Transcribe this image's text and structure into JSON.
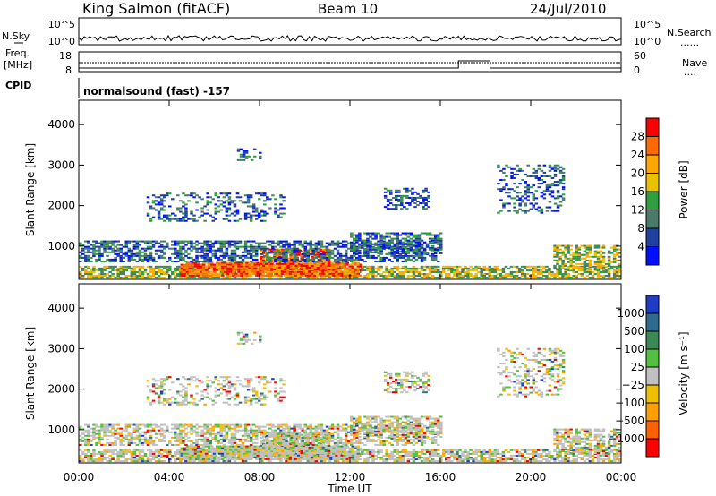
{
  "header": {
    "station": "King Salmon (fitACF)",
    "beam": "Beam 10",
    "date": "24/Jul/2010"
  },
  "top_panels": {
    "nsky_label": "N.Sky",
    "nsky_ticks": [
      "10^5",
      "10^0"
    ],
    "nsearch_label": "N.Search",
    "nsearch_ticks": [
      "10^5",
      "10^0"
    ],
    "freq_label_1": "Freq.",
    "freq_label_2": "[MHz]",
    "freq_ticks": [
      "18",
      "8"
    ],
    "nave_label": "Nave",
    "nave_ticks": [
      "60",
      "0"
    ],
    "cpid_label": "CPID",
    "cpid_value": "normalsound (fast) -157"
  },
  "chart_data": [
    {
      "type": "heatmap",
      "name": "power",
      "xlabel": "Time UT",
      "ylabel": "Slant Range [km]",
      "x_ticks": [
        "00:00",
        "04:00",
        "08:00",
        "12:00",
        "16:00",
        "20:00",
        "00:00"
      ],
      "y_ticks": [
        1000,
        2000,
        3000,
        4000
      ],
      "xlim_hours": [
        0,
        24
      ],
      "ylim_km": [
        180,
        4600
      ],
      "colorbar": {
        "label": "Power [dB]",
        "ticks": [
          "28",
          "24",
          "20",
          "16",
          "12",
          "8",
          "4"
        ],
        "colors": [
          "#ff0000",
          "#ff6a00",
          "#ffa500",
          "#e6c200",
          "#2e9e3e",
          "#4a7a6a",
          "#2040a0",
          "#0010ff"
        ]
      },
      "echo_regions": [
        {
          "t0": 0.0,
          "t1": 24.0,
          "r0": 200,
          "r1": 500,
          "level": "medium",
          "density": 0.7
        },
        {
          "t0": 4.5,
          "t1": 12.5,
          "r0": 250,
          "r1": 600,
          "level": "high",
          "density": 0.9
        },
        {
          "t0": 8.0,
          "t1": 11.0,
          "r0": 400,
          "r1": 900,
          "level": "high",
          "density": 0.85
        },
        {
          "t0": 0.0,
          "t1": 16.0,
          "r0": 600,
          "r1": 1100,
          "level": "low",
          "density": 0.6
        },
        {
          "t0": 12.0,
          "t1": 16.0,
          "r0": 800,
          "r1": 1300,
          "level": "low",
          "density": 0.6
        },
        {
          "t0": 3.0,
          "t1": 9.0,
          "r0": 1600,
          "r1": 2300,
          "level": "low",
          "density": 0.3
        },
        {
          "t0": 13.5,
          "t1": 15.5,
          "r0": 1900,
          "r1": 2400,
          "level": "low",
          "density": 0.4
        },
        {
          "t0": 7.0,
          "t1": 8.0,
          "r0": 3100,
          "r1": 3400,
          "level": "low",
          "density": 0.4
        },
        {
          "t0": 18.5,
          "t1": 21.5,
          "r0": 1800,
          "r1": 3000,
          "level": "low",
          "density": 0.3
        },
        {
          "t0": 21.0,
          "t1": 24.0,
          "r0": 400,
          "r1": 1000,
          "level": "medium",
          "density": 0.6
        }
      ]
    },
    {
      "type": "heatmap",
      "name": "velocity",
      "xlabel": "Time UT",
      "ylabel": "Slant Range [km]",
      "x_ticks": [
        "00:00",
        "04:00",
        "08:00",
        "12:00",
        "16:00",
        "20:00",
        "00:00"
      ],
      "y_ticks": [
        1000,
        2000,
        3000,
        4000
      ],
      "xlim_hours": [
        0,
        24
      ],
      "ylim_km": [
        180,
        4600
      ],
      "colorbar": {
        "label": "Velocity [m s⁻¹]",
        "ticks": [
          "1000",
          "500",
          "100",
          "25",
          "−25",
          "−100",
          "−500",
          "−1000"
        ],
        "colors": [
          "#1e3cc8",
          "#2f6a90",
          "#3a8a55",
          "#55c040",
          "#c0c0c0",
          "#f0c000",
          "#ffa000",
          "#ff6000",
          "#ff0000"
        ]
      }
    }
  ]
}
